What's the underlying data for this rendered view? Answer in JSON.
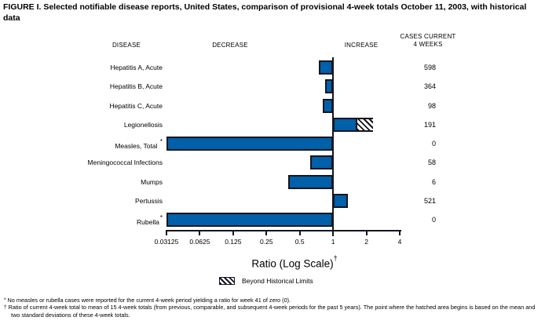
{
  "title": "FIGURE I. Selected notifiable disease reports, United States, comparison of provisional 4-week totals October 11, 2003, with historical data",
  "columns": {
    "disease": "DISEASE",
    "decrease": "DECREASE",
    "increase": "INCREASE",
    "cases_line1": "CASES CURRENT",
    "cases_line2": "4 WEEKS"
  },
  "chart_data": {
    "type": "bar",
    "orientation": "horizontal",
    "scale": "log2",
    "baseline": 1,
    "axis_range": [
      0.03125,
      4
    ],
    "ticks": [
      {
        "label": "0.03125",
        "value": 0.03125
      },
      {
        "label": "0.0625",
        "value": 0.0625
      },
      {
        "label": "0.125",
        "value": 0.125
      },
      {
        "label": "0.25",
        "value": 0.25
      },
      {
        "label": "0.5",
        "value": 0.5
      },
      {
        "label": "1",
        "value": 1
      },
      {
        "label": "2",
        "value": 2
      },
      {
        "label": "4",
        "value": 4
      }
    ],
    "xlabel": "Ratio (Log Scale)",
    "xlabel_marker": "†",
    "legend": [
      {
        "swatch": "hatched",
        "label": "Beyond Historical Limits"
      }
    ],
    "rows": [
      {
        "disease": "Hepatitis A, Acute",
        "ratio": 0.74,
        "cases": "598"
      },
      {
        "disease": "Hepatitis B, Acute",
        "ratio": 0.85,
        "cases": "364"
      },
      {
        "disease": "Hepatitis C, Acute",
        "ratio": 0.81,
        "cases": "98"
      },
      {
        "disease": "Legionellosis",
        "ratio": 2.3,
        "hatch_start": 1.6,
        "cases": "191"
      },
      {
        "disease": "Measles, Total ",
        "marker": "*",
        "ratio": 0,
        "cases": "0"
      },
      {
        "disease": "Meningococcal Infections",
        "ratio": 0.62,
        "cases": "58"
      },
      {
        "disease": "Mumps",
        "ratio": 0.39,
        "cases": "6"
      },
      {
        "disease": "Pertussis",
        "ratio": 1.35,
        "cases": "521"
      },
      {
        "disease": "Rubella",
        "marker": "*",
        "ratio": 0,
        "cases": "0"
      }
    ]
  },
  "colors": {
    "bar_fill": "#0060a9",
    "bar_border": "#15151f",
    "axis": "#15151f",
    "text": "#000000"
  },
  "footnotes": [
    {
      "marker": "*",
      "text": "No measles or rubella cases were reported for the current 4-week period yielding a ratio for week 41 of zero (0)."
    },
    {
      "marker": "†",
      "text": "Ratio of current 4-week total to mean of 15 4-week totals (from previous, comparable, and subsequent 4-week periods for the past 5 years). The point where the hatched area begins is based on the mean and two standard deviations of these 4-week totals."
    }
  ]
}
